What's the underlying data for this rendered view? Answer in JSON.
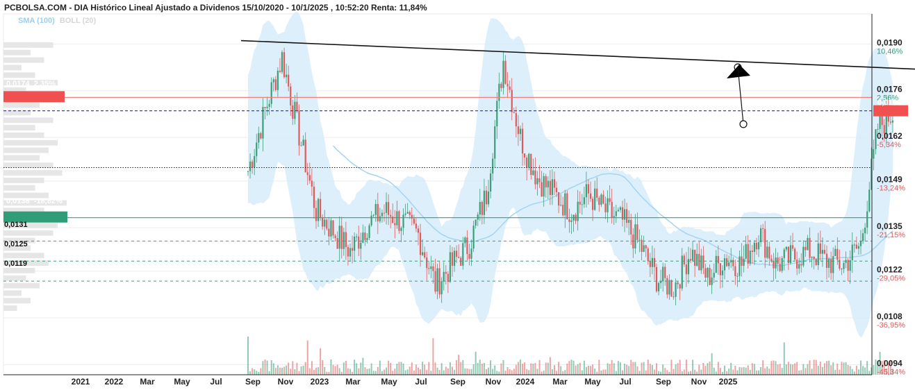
{
  "header": {
    "title": "PCBOLSA.COM - DIA Histórico Lineal Ajustado a Dividenos 15/10/2020 - 10/1/2025 , 10:52:20 Renta: 11,84%"
  },
  "indicators": {
    "sma": "SMA (100)",
    "boll": "BOLL (20)"
  },
  "colors": {
    "up": "#3a9e78",
    "down": "#e05a5a",
    "band": "#d3ebfa",
    "sma": "#a5d3f0",
    "grid": "#eeeeee",
    "resistance_red": "#f08080",
    "support_green": "#3a9e78",
    "current_blue": "#2d3ee0",
    "price_tag_red": "#f05050",
    "price_tag_green": "#2f9e78"
  },
  "labels": {
    "tag_red": "0,0174  2,35%",
    "tag_green": "0,0138  -18,82%",
    "current_price": "0,0170",
    "level_1": "0,0131",
    "level_2": "0,0125",
    "level_3": "0,0119"
  },
  "chart_data": {
    "type": "candlestick",
    "x_axis_ticks": [
      "2021",
      "2022",
      "Mar",
      "May",
      "Jul",
      "Sep",
      "Nov",
      "2023",
      "Mar",
      "May",
      "Jul",
      "Sep",
      "Nov",
      "2024",
      "Mar",
      "May",
      "Jul",
      "Sep",
      "Nov",
      "2025"
    ],
    "y_axis_ticks": [
      {
        "price": "0,0190",
        "pct": "10,46%"
      },
      {
        "price": "0,0176",
        "pct": "2,56%"
      },
      {
        "price": "0,0162",
        "pct": "-5,34%"
      },
      {
        "price": "0,0149",
        "pct": "-13,24%"
      },
      {
        "price": "0,0135",
        "pct": "-21,15%"
      },
      {
        "price": "0,0122",
        "pct": "-29,05%"
      },
      {
        "price": "0,0108",
        "pct": "-36,95%"
      },
      {
        "price": "0,0094",
        "pct": "-45,34%"
      }
    ],
    "ylim": [
      0.0091,
      0.0199
    ],
    "current_price": 0.017,
    "horizontal_levels": {
      "red_resistance": 0.0174,
      "current_blue_dashed": 0.017,
      "black_dotted": 0.0153,
      "green_support": 0.0138,
      "green_dashed": [
        0.0131,
        0.0125,
        0.0119
      ]
    },
    "trendline": {
      "start": [
        "2021-11",
        0.0191
      ],
      "end": [
        "2025-04",
        0.0182
      ]
    },
    "price_path": [
      [
        "2021-11",
        0.0152
      ],
      [
        "2021-12",
        0.017
      ],
      [
        "2022-01",
        0.0186
      ],
      [
        "2022-02",
        0.0163
      ],
      [
        "2022-03",
        0.014
      ],
      [
        "2022-04",
        0.0134
      ],
      [
        "2022-05",
        0.0128
      ],
      [
        "2022-06",
        0.0136
      ],
      [
        "2022-07",
        0.014
      ],
      [
        "2022-08",
        0.0137
      ],
      [
        "2022-09",
        0.0133
      ],
      [
        "2022-10",
        0.0118
      ],
      [
        "2022-11",
        0.0124
      ],
      [
        "2022-12",
        0.013
      ],
      [
        "2023-01",
        0.0145
      ],
      [
        "2023-02",
        0.0185
      ],
      [
        "2023-03",
        0.0162
      ],
      [
        "2023-04",
        0.015
      ],
      [
        "2023-05",
        0.0145
      ],
      [
        "2023-06",
        0.014
      ],
      [
        "2023-07",
        0.0145
      ],
      [
        "2023-08",
        0.014
      ],
      [
        "2023-09",
        0.0137
      ],
      [
        "2023-10",
        0.013
      ],
      [
        "2023-11",
        0.012
      ],
      [
        "2023-12",
        0.0117
      ],
      [
        "2024-01",
        0.0128
      ],
      [
        "2024-02",
        0.012
      ],
      [
        "2024-03",
        0.0126
      ],
      [
        "2024-04",
        0.0124
      ],
      [
        "2024-05",
        0.0134
      ],
      [
        "2024-06",
        0.0124
      ],
      [
        "2024-07",
        0.0126
      ],
      [
        "2024-08",
        0.0128
      ],
      [
        "2024-09",
        0.0125
      ],
      [
        "2024-10",
        0.0124
      ],
      [
        "2024-11",
        0.013
      ],
      [
        "2024-12",
        0.0165
      ],
      [
        "2025-01",
        0.017
      ]
    ],
    "volume_profile": [
      0.55,
      0.3,
      0.45,
      0.2,
      0.35,
      0.6,
      0.25,
      0.5,
      0.4,
      0.3,
      0.55,
      0.35,
      0.45,
      0.6,
      0.5,
      0.4,
      0.55,
      0.65,
      0.45,
      0.35,
      0.5,
      0.7,
      0.45,
      0.4,
      0.6,
      0.55,
      0.35,
      0.3,
      0.45,
      0.5,
      0.35,
      0.25,
      0.4,
      0.2,
      0.3,
      0.15
    ]
  }
}
